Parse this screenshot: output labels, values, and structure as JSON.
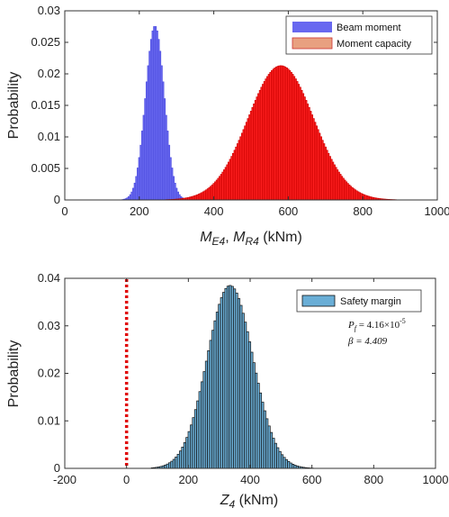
{
  "chart_data": [
    {
      "type": "histogram",
      "xlim": [
        0,
        1000
      ],
      "ylim": [
        0,
        0.03
      ],
      "xticks": [
        "0",
        "200",
        "400",
        "600",
        "800",
        "1000"
      ],
      "yticks": [
        "0",
        "0.005",
        "0.01",
        "0.015",
        "0.02",
        "0.025",
        "0.03"
      ],
      "ylabel": "Probability",
      "xlabel_parts": [
        "M",
        "E4",
        ", ",
        "M",
        "R4",
        " (kNm)"
      ],
      "legend_position": "top-right",
      "series": [
        {
          "name": "Beam moment",
          "color": "#6868f0",
          "edge": "#5050e0",
          "mean": 242,
          "sd": 25,
          "peak": 0.0276,
          "range": [
            150,
            420
          ]
        },
        {
          "name": "Moment capacity",
          "color": "#ff2020",
          "edge": "#cc0000",
          "legend_color": "#e8a080",
          "mean": 580,
          "sd": 88,
          "peak": 0.0213,
          "range": [
            270,
            960
          ]
        }
      ]
    },
    {
      "type": "histogram",
      "xlim": [
        -200,
        1000
      ],
      "ylim": [
        0,
        0.04
      ],
      "xticks": [
        "-200",
        "0",
        "200",
        "400",
        "600",
        "800",
        "1000"
      ],
      "yticks": [
        "0",
        "0.01",
        "0.02",
        "0.03",
        "0.04"
      ],
      "ylabel": "Probability",
      "xlabel_parts": [
        "Z",
        "4",
        " (kNm)"
      ],
      "legend_position": "top-right",
      "series": [
        {
          "name": "Safety margin",
          "color": "#6aaed6",
          "edge": "#111111",
          "mean": 335,
          "sd": 74,
          "peak": 0.0385,
          "range": [
            80,
            640
          ]
        }
      ],
      "reference_line": {
        "x": 0,
        "color": "#e00000",
        "style": "dotted"
      },
      "annotations": {
        "pf_symbol": "P",
        "pf_sub": "f",
        "pf_value": " = 4.16×10",
        "pf_exp": "-5",
        "beta": "β = 4.409"
      }
    }
  ]
}
